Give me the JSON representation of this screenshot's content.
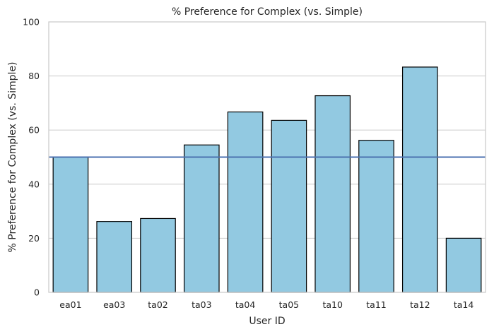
{
  "chart_data": {
    "type": "bar",
    "title": "% Preference for Complex (vs. Simple)",
    "xlabel": "User ID",
    "ylabel": "% Preference for Complex (vs. Simple)",
    "categories": [
      "ea01",
      "ea03",
      "ta02",
      "ta03",
      "ta04",
      "ta05",
      "ta10",
      "ta11",
      "ta12",
      "ta14"
    ],
    "values": [
      50,
      26.2,
      27.3,
      54.5,
      66.7,
      63.6,
      72.7,
      56.2,
      83.3,
      20
    ],
    "ylim": [
      0,
      100
    ],
    "yticks": [
      0,
      20,
      40,
      60,
      80,
      100
    ],
    "grid": "horizontal",
    "reference_line": {
      "y": 50,
      "color": "#4c72b0"
    },
    "colors": {
      "bar_fill": "#92c9e1",
      "bar_edge": "#000000",
      "grid": "#d0d0d0",
      "axes_frame": "#cccccc"
    }
  }
}
